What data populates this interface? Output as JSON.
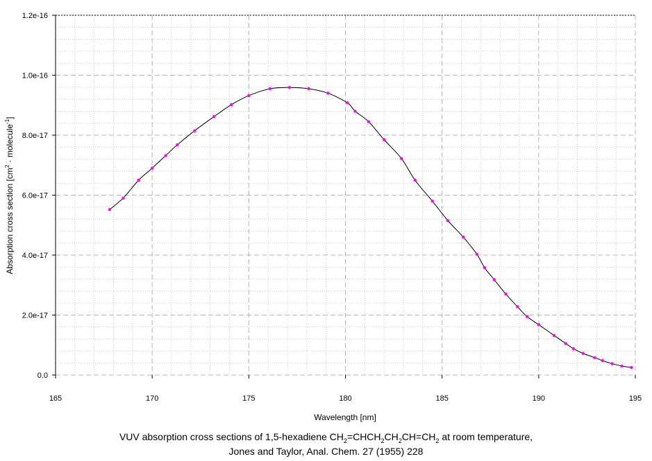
{
  "chart_data": {
    "type": "line",
    "xlabel": "Wavelength [nm]",
    "ylabel": "Absorption cross section [cm2 · molecule-1]",
    "xlim": [
      165,
      195
    ],
    "ylim": [
      0,
      1.2e-16
    ],
    "x_ticks": [
      "165",
      "170",
      "175",
      "180",
      "185",
      "190",
      "195"
    ],
    "y_ticks": [
      "0.0",
      "2.0e-17",
      "4.0e-17",
      "6.0e-17",
      "8.0e-17",
      "1.0e-16",
      "1.2e-16"
    ],
    "grid": true,
    "line_color": "#000000",
    "marker_color": "#ff00ff",
    "series": [
      {
        "x": [
          167.8,
          168.5,
          169.3,
          170.0,
          170.7,
          171.3,
          172.2,
          173.2,
          174.1,
          175.0,
          176.1,
          177.1,
          178.1,
          179.1,
          180.1,
          180.5,
          181.2,
          182.0,
          182.9,
          183.6,
          184.5,
          185.3,
          186.1,
          186.8,
          187.2,
          187.7,
          188.3,
          188.9,
          189.4,
          190.0,
          190.8,
          191.4,
          191.8,
          192.3,
          192.9,
          193.3,
          193.8,
          194.3,
          194.8
        ],
        "y": [
          5.52e-17,
          5.9e-17,
          6.5e-17,
          6.9e-17,
          7.32e-17,
          7.68e-17,
          8.15e-17,
          8.62e-17,
          9.02e-17,
          9.32e-17,
          9.55e-17,
          9.59e-17,
          9.55e-17,
          9.4e-17,
          9.08e-17,
          8.8e-17,
          8.45e-17,
          7.85e-17,
          7.22e-17,
          6.5e-17,
          5.8e-17,
          5.15e-17,
          4.6e-17,
          4.03e-17,
          3.58e-17,
          3.18e-17,
          2.7e-17,
          2.28e-17,
          1.95e-17,
          1.68e-17,
          1.32e-17,
          1.05e-17,
          8.8e-18,
          7.2e-18,
          5.8e-18,
          4.8e-18,
          3.8e-18,
          3e-18,
          2.5e-18
        ]
      }
    ]
  },
  "caption": {
    "line1_pre": "VUV absorption cross sections of 1,5-hexadiene CH",
    "line1_formula_sub1": "2",
    "line1_formula_mid1": "=CHCH",
    "line1_formula_sub2": "2",
    "line1_formula_mid2": "CH",
    "line1_formula_sub3": "2",
    "line1_formula_mid3": "CH=CH",
    "line1_formula_sub4": "2",
    "line1_post": " at room temperature,",
    "line2": "Jones and Taylor, Anal. Chem. 27 (1955) 228"
  }
}
